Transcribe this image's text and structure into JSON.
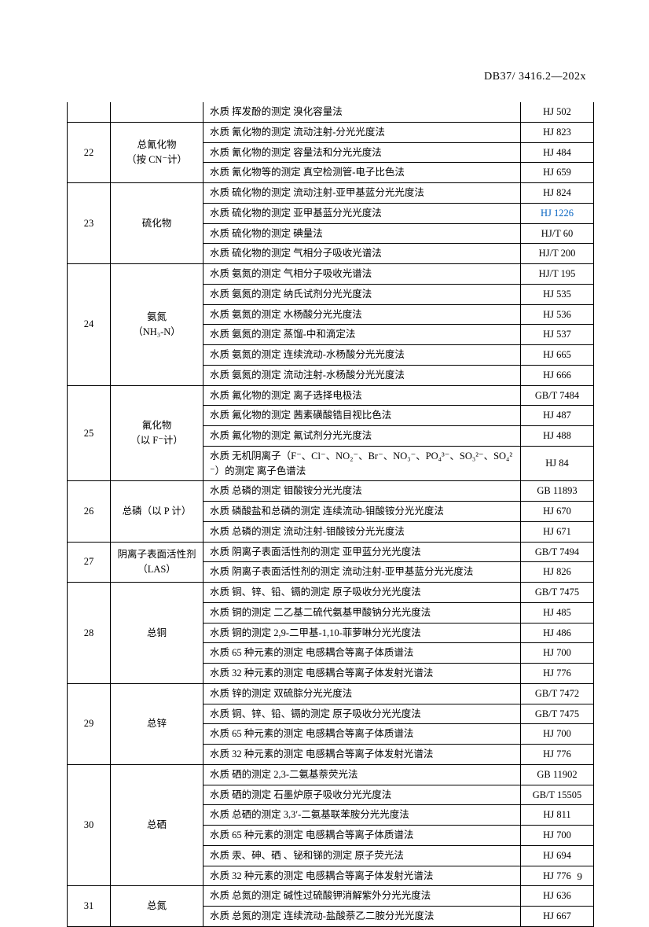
{
  "doc_code": "DB37/ 3416.2—202x",
  "page_number": "9",
  "groups": [
    {
      "idx": "",
      "item": "",
      "rows": [
        {
          "method": "水质 挥发酚的测定 溴化容量法",
          "std": "HJ 502"
        }
      ]
    },
    {
      "idx": "22",
      "item": "总氰化物\n（按 CN⁻计）",
      "rows": [
        {
          "method": "水质 氰化物的测定 流动注射-分光光度法",
          "std": "HJ 823"
        },
        {
          "method": "水质 氰化物的测定 容量法和分光光度法",
          "std": "HJ 484"
        },
        {
          "method": "水质 氰化物等的测定 真空检测管-电子比色法",
          "std": "HJ 659"
        }
      ]
    },
    {
      "idx": "23",
      "item": "硫化物",
      "rows": [
        {
          "method": "水质 硫化物的测定 流动注射-亚甲基蓝分光光度法",
          "std": "HJ 824"
        },
        {
          "method": "水质 硫化物的测定 亚甲基蓝分光光度法",
          "std": "HJ 1226",
          "link": true
        },
        {
          "method": "水质 硫化物的测定 碘量法",
          "std": "HJ/T 60"
        },
        {
          "method": "水质 硫化物的测定 气相分子吸收光谱法",
          "std": "HJ/T 200"
        }
      ]
    },
    {
      "idx": "24",
      "item": "氨氮\n（NH₃-N）",
      "rows": [
        {
          "method": "水质 氨氮的测定 气相分子吸收光谱法",
          "std": "HJ/T 195"
        },
        {
          "method": "水质 氨氮的测定 纳氏试剂分光光度法",
          "std": "HJ 535"
        },
        {
          "method": "水质 氨氮的测定 水杨酸分光光度法",
          "std": "HJ 536"
        },
        {
          "method": "水质 氨氮的测定 蒸馏-中和滴定法",
          "std": "HJ 537"
        },
        {
          "method": "水质 氨氮的测定 连续流动-水杨酸分光光度法",
          "std": "HJ 665"
        },
        {
          "method": "水质 氨氮的测定 流动注射-水杨酸分光光度法",
          "std": "HJ 666"
        }
      ]
    },
    {
      "idx": "25",
      "item": "氟化物\n（以 F⁻计）",
      "rows": [
        {
          "method": "水质 氟化物的测定 离子选择电极法",
          "std": "GB/T 7484"
        },
        {
          "method": "水质 氟化物的测定 茜素磺酸锆目视比色法",
          "std": "HJ 487"
        },
        {
          "method": "水质 氟化物的测定 氟试剂分光光度法",
          "std": "HJ 488"
        },
        {
          "method": "水质 无机阴离子（F⁻、Cl⁻、NO₂⁻、Br⁻、NO₃⁻、PO₄³⁻、SO₃²⁻、SO₄²⁻）的测定 离子色谱法",
          "std": "HJ 84"
        }
      ]
    },
    {
      "idx": "26",
      "item": "总磷（以 P 计）",
      "rows": [
        {
          "method": "水质 总磷的测定 钼酸铵分光光度法",
          "std": "GB 11893"
        },
        {
          "method": "水质 磷酸盐和总磷的测定 连续流动-钼酸铵分光光度法",
          "std": "HJ 670"
        },
        {
          "method": "水质 总磷的测定 流动注射-钼酸铵分光光度法",
          "std": "HJ 671"
        }
      ]
    },
    {
      "idx": "27",
      "item": "阴离子表面活性剂（LAS）",
      "rows": [
        {
          "method": "水质 阴离子表面活性剂的测定 亚甲蓝分光光度法",
          "std": "GB/T 7494"
        },
        {
          "method": "水质 阴离子表面活性剂的测定 流动注射-亚甲基蓝分光光度法",
          "std": "HJ 826"
        }
      ]
    },
    {
      "idx": "28",
      "item": "总铜",
      "rows": [
        {
          "method": "水质 铜、锌、铅、镉的测定 原子吸收分光光度法",
          "std": "GB/T 7475"
        },
        {
          "method": "水质 铜的测定 二乙基二硫代氨基甲酸钠分光光度法",
          "std": "HJ 485"
        },
        {
          "method": "水质 铜的测定 2,9-二甲基-1,10-菲萝啉分光光度法",
          "std": "HJ 486"
        },
        {
          "method": "水质 65 种元素的测定 电感耦合等离子体质谱法",
          "std": "HJ 700"
        },
        {
          "method": "水质 32 种元素的测定 电感耦合等离子体发射光谱法",
          "std": "HJ 776"
        }
      ]
    },
    {
      "idx": "29",
      "item": "总锌",
      "rows": [
        {
          "method": "水质 锌的测定 双硫腙分光光度法",
          "std": "GB/T 7472"
        },
        {
          "method": "水质 铜、锌、铅、镉的测定 原子吸收分光光度法",
          "std": "GB/T 7475"
        },
        {
          "method": "水质 65 种元素的测定 电感耦合等离子体质谱法",
          "std": "HJ 700"
        },
        {
          "method": "水质 32 种元素的测定 电感耦合等离子体发射光谱法",
          "std": "HJ 776"
        }
      ]
    },
    {
      "idx": "30",
      "item": "总硒",
      "rows": [
        {
          "method": "水质 硒的测定 2,3-二氨基萘荧光法",
          "std": "GB 11902"
        },
        {
          "method": "水质 硒的测定 石墨炉原子吸收分光光度法",
          "std": "GB/T 15505"
        },
        {
          "method": "水质 总硒的测定 3,3′-二氨基联苯胺分光光度法",
          "std": "HJ 811"
        },
        {
          "method": "水质 65 种元素的测定 电感耦合等离子体质谱法",
          "std": "HJ 700"
        },
        {
          "method": "水质 汞、砷、硒 、铋和锑的测定 原子荧光法",
          "std": "HJ 694"
        },
        {
          "method": "水质 32 种元素的测定 电感耦合等离子体发射光谱法",
          "std": "HJ 776"
        }
      ]
    },
    {
      "idx": "31",
      "item": "总氮",
      "rows": [
        {
          "method": "水质 总氮的测定 碱性过硫酸钾消解紫外分光光度法",
          "std": "HJ 636"
        },
        {
          "method": "水质 总氮的测定 连续流动-盐酸萘乙二胺分光光度法",
          "std": "HJ 667"
        }
      ]
    }
  ]
}
